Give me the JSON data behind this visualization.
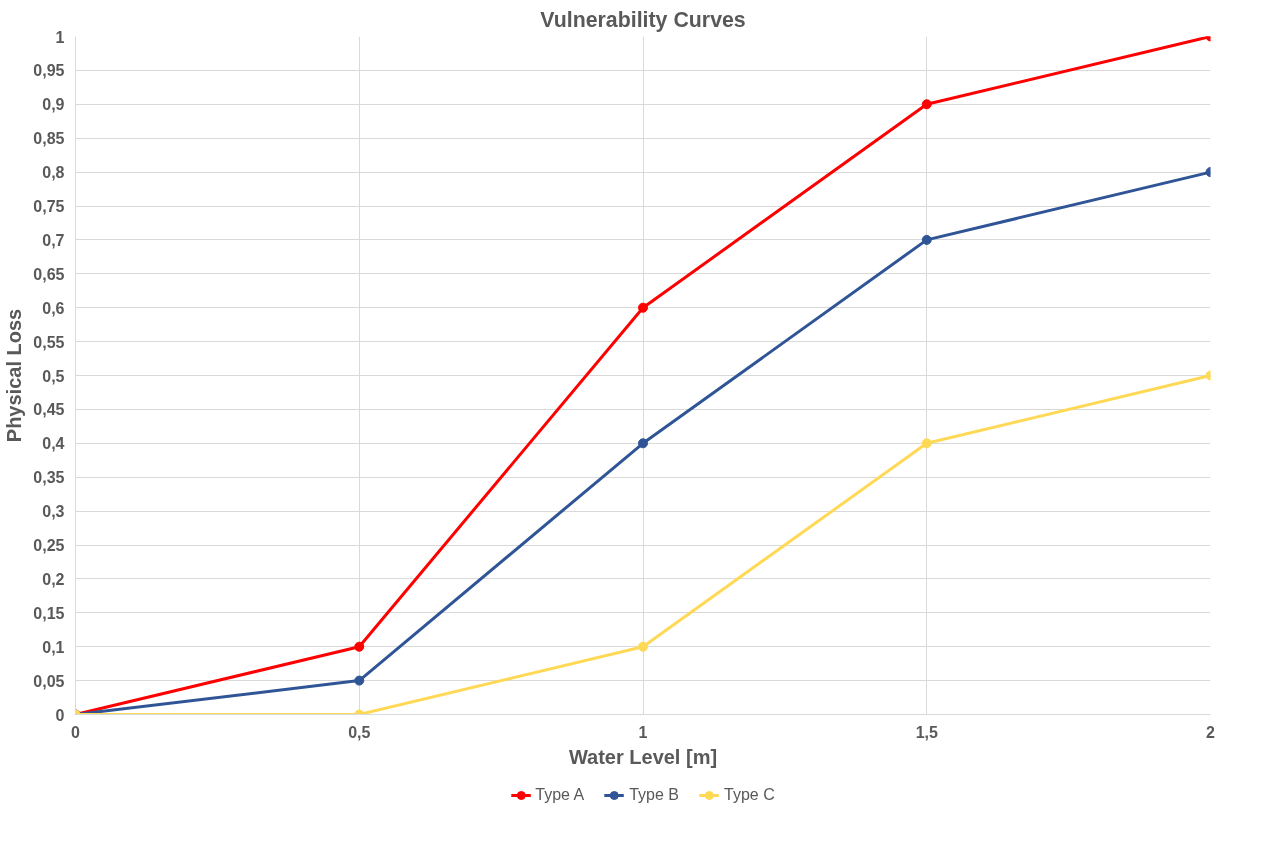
{
  "chart_data": {
    "type": "line",
    "title": "Vulnerability Curves",
    "xlabel": "Water Level [m]",
    "ylabel": "Physical Loss",
    "x": [
      0,
      0.5,
      1,
      1.5,
      2
    ],
    "series": [
      {
        "name": "Type A",
        "color": "#ff0000",
        "values": [
          0,
          0.1,
          0.6,
          0.9,
          1
        ]
      },
      {
        "name": "Type B",
        "color": "#2f5597",
        "values": [
          0,
          0.05,
          0.4,
          0.7,
          0.8
        ]
      },
      {
        "name": "Type C",
        "color": "#ffd955",
        "values": [
          0,
          0,
          0.1,
          0.4,
          0.5
        ]
      }
    ],
    "xlim": [
      0,
      2
    ],
    "xticks": [
      0,
      {
        "value": 0.5,
        "label": "0,5"
      },
      1,
      {
        "value": 1.5,
        "label": "1,5"
      },
      2
    ],
    "ylim": [
      0,
      1
    ],
    "yticks": [
      0,
      {
        "value": 0.05,
        "label": "0,05"
      },
      {
        "value": 0.1,
        "label": "0,1"
      },
      {
        "value": 0.15,
        "label": "0,15"
      },
      {
        "value": 0.2,
        "label": "0,2"
      },
      {
        "value": 0.25,
        "label": "0,25"
      },
      {
        "value": 0.3,
        "label": "0,3"
      },
      {
        "value": 0.35,
        "label": "0,35"
      },
      {
        "value": 0.4,
        "label": "0,4"
      },
      {
        "value": 0.45,
        "label": "0,45"
      },
      {
        "value": 0.5,
        "label": "0,5"
      },
      {
        "value": 0.55,
        "label": "0,55"
      },
      {
        "value": 0.6,
        "label": "0,6"
      },
      {
        "value": 0.65,
        "label": "0,65"
      },
      {
        "value": 0.7,
        "label": "0,7"
      },
      {
        "value": 0.75,
        "label": "0,75"
      },
      {
        "value": 0.8,
        "label": "0,8"
      },
      {
        "value": 0.85,
        "label": "0,85"
      },
      {
        "value": 0.9,
        "label": "0,9"
      },
      {
        "value": 0.95,
        "label": "0,95"
      },
      1
    ],
    "grid": true,
    "legend": "bottom",
    "marker": "circle",
    "line_style": "solid"
  }
}
